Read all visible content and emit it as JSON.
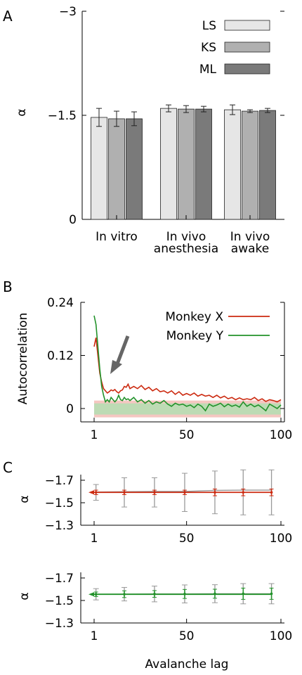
{
  "panels": {
    "A": {
      "letter": "A",
      "ylabel": "α",
      "yticks": [
        {
          "value": 0,
          "label": "0"
        },
        {
          "value": -1.5,
          "label": "−1.5"
        },
        {
          "value": -3,
          "label": "−3"
        }
      ],
      "legend": [
        {
          "name": "LS",
          "color": "#e6e6e6"
        },
        {
          "name": "KS",
          "color": "#b0b0b0"
        },
        {
          "name": "ML",
          "color": "#7a7a7a"
        }
      ],
      "groups": [
        {
          "lines": [
            "In vitro"
          ]
        },
        {
          "lines": [
            "In vivo",
            "anesthesia"
          ]
        },
        {
          "lines": [
            "In vivo",
            "awake"
          ]
        }
      ]
    },
    "B": {
      "letter": "B",
      "ylabel": "Autocorrelation",
      "yticks": [
        {
          "value": 0,
          "label": "0"
        },
        {
          "value": 0.12,
          "label": "0.12"
        },
        {
          "value": 0.24,
          "label": "0.24"
        }
      ],
      "xticks": [
        {
          "value": 1,
          "label": "1"
        },
        {
          "value": 50,
          "label": "50"
        },
        {
          "value": 100,
          "label": "100"
        }
      ],
      "legend": [
        {
          "name": "Monkey X",
          "color": "#cc2a10"
        },
        {
          "name": "Monkey Y",
          "color": "#22922a"
        }
      ]
    },
    "C": {
      "letter": "C",
      "ylabel": "α",
      "xlabel": "Avalanche lag",
      "yticks": [
        {
          "value": -1.7,
          "label": "−1.7"
        },
        {
          "value": -1.5,
          "label": "−1.5"
        },
        {
          "value": -1.3,
          "label": "−1.3"
        }
      ],
      "xticks": [
        {
          "value": 1,
          "label": "1"
        },
        {
          "value": 50,
          "label": "50"
        },
        {
          "value": 100,
          "label": "100"
        }
      ]
    }
  },
  "chart_data": [
    {
      "type": "bar",
      "panel": "A",
      "categories": [
        "In vitro",
        "In vivo anesthesia",
        "In vivo awake"
      ],
      "ylim": [
        0,
        -3
      ],
      "series": [
        {
          "name": "LS",
          "values": [
            -1.47,
            -1.6,
            -1.58
          ],
          "errors": [
            0.13,
            0.05,
            0.07
          ]
        },
        {
          "name": "KS",
          "values": [
            -1.45,
            -1.59,
            -1.56
          ],
          "errors": [
            0.11,
            0.05,
            0.02
          ]
        },
        {
          "name": "ML",
          "values": [
            -1.45,
            -1.59,
            -1.57
          ],
          "errors": [
            0.1,
            0.04,
            0.03
          ]
        }
      ]
    },
    {
      "type": "line",
      "panel": "B",
      "xlim": [
        1,
        100
      ],
      "ylim": [
        -0.03,
        0.24
      ],
      "series": [
        {
          "name": "Monkey X",
          "x": [
            1,
            2,
            3,
            4,
            5,
            6,
            7,
            8,
            9,
            10,
            11,
            12,
            13,
            14,
            15,
            16,
            17,
            18,
            19,
            20,
            22,
            24,
            26,
            28,
            30,
            32,
            34,
            36,
            38,
            40,
            42,
            44,
            46,
            48,
            50,
            52,
            54,
            56,
            58,
            60,
            62,
            64,
            66,
            68,
            70,
            72,
            74,
            76,
            78,
            80,
            82,
            84,
            86,
            88,
            90,
            92,
            94,
            96,
            98,
            100
          ],
          "y": [
            0.14,
            0.16,
            0.12,
            0.08,
            0.06,
            0.045,
            0.04,
            0.035,
            0.038,
            0.042,
            0.04,
            0.043,
            0.038,
            0.035,
            0.04,
            0.042,
            0.05,
            0.048,
            0.055,
            0.045,
            0.05,
            0.045,
            0.052,
            0.043,
            0.048,
            0.04,
            0.045,
            0.038,
            0.04,
            0.035,
            0.04,
            0.032,
            0.038,
            0.03,
            0.034,
            0.03,
            0.035,
            0.028,
            0.032,
            0.028,
            0.03,
            0.025,
            0.03,
            0.024,
            0.028,
            0.022,
            0.025,
            0.02,
            0.024,
            0.02,
            0.022,
            0.02,
            0.025,
            0.018,
            0.022,
            0.016,
            0.02,
            0.018,
            0.015,
            0.02
          ]
        },
        {
          "name": "Monkey Y",
          "x": [
            1,
            2,
            3,
            4,
            5,
            6,
            7,
            8,
            9,
            10,
            11,
            12,
            13,
            14,
            15,
            16,
            17,
            18,
            19,
            20,
            22,
            24,
            26,
            28,
            30,
            32,
            34,
            36,
            38,
            40,
            42,
            44,
            46,
            48,
            50,
            52,
            54,
            56,
            58,
            60,
            62,
            64,
            66,
            68,
            70,
            72,
            74,
            76,
            78,
            80,
            82,
            84,
            86,
            88,
            90,
            92,
            94,
            96,
            98,
            100
          ],
          "y": [
            0.21,
            0.19,
            0.14,
            0.09,
            0.05,
            0.03,
            0.015,
            0.02,
            0.015,
            0.025,
            0.02,
            0.015,
            0.02,
            0.03,
            0.02,
            0.018,
            0.025,
            0.02,
            0.022,
            0.018,
            0.025,
            0.015,
            0.02,
            0.012,
            0.018,
            0.01,
            0.015,
            0.012,
            0.018,
            0.01,
            0.005,
            0.012,
            0.008,
            0.01,
            0.005,
            0.008,
            0.002,
            0.01,
            0.005,
            -0.005,
            0.01,
            0.005,
            0.008,
            0.012,
            0.004,
            0.01,
            0.005,
            0.008,
            0.003,
            0.015,
            0.005,
            0.01,
            0.004,
            0.008,
            0.002,
            -0.005,
            0.01,
            0.005,
            0.0,
            0.008
          ]
        },
        {
          "name": "",
          "band": [
            -0.02,
            0.018
          ]
        }
      ]
    },
    {
      "type": "line",
      "panel": "C-top",
      "xlim": [
        1,
        100
      ],
      "ylim": [
        -1.3,
        -1.7
      ],
      "series": [
        {
          "name": "",
          "x": [
            1,
            2,
            3,
            4,
            5,
            6,
            7,
            8,
            9,
            10,
            11,
            12,
            13,
            14,
            15,
            16,
            17,
            18,
            19,
            20,
            21,
            22,
            23,
            24,
            25,
            26,
            27,
            28,
            29,
            30,
            31,
            32,
            33,
            34,
            35,
            36,
            37,
            38,
            39,
            40,
            41,
            42,
            43,
            44,
            45,
            46,
            47,
            48,
            49,
            50,
            51,
            52,
            53,
            54,
            55,
            56,
            57,
            58,
            59,
            60,
            61,
            62,
            63,
            64,
            65,
            66,
            67,
            68,
            69,
            70,
            71,
            72,
            73,
            74,
            75,
            76,
            77,
            78,
            79,
            80,
            81,
            82,
            83,
            84,
            85,
            86,
            87,
            88,
            89,
            90,
            91,
            92,
            93,
            94,
            95
          ],
          "y": [
            -1.592,
            -1.592,
            -1.592,
            -1.592,
            -1.592,
            -1.592,
            -1.592,
            -1.592,
            -1.592,
            -1.592,
            -1.592,
            -1.592,
            -1.592,
            -1.592,
            -1.592,
            -1.592,
            -1.592,
            -1.592,
            -1.592,
            -1.592,
            -1.592,
            -1.592,
            -1.592,
            -1.592,
            -1.592,
            -1.592,
            -1.592,
            -1.592,
            -1.592,
            -1.592,
            -1.592,
            -1.592,
            -1.592,
            -1.592,
            -1.592,
            -1.592,
            -1.592,
            -1.592,
            -1.592,
            -1.592,
            -1.592,
            -1.592,
            -1.592,
            -1.592,
            -1.592,
            -1.592,
            -1.592,
            -1.592,
            -1.592,
            -1.592,
            -1.592,
            -1.592,
            -1.592,
            -1.592,
            -1.592,
            -1.592,
            -1.592,
            -1.592,
            -1.592,
            -1.592,
            -1.592,
            -1.592,
            -1.592,
            -1.592,
            -1.592,
            -1.592,
            -1.592,
            -1.592,
            -1.592,
            -1.592,
            -1.592,
            -1.592,
            -1.592,
            -1.592,
            -1.592,
            -1.592,
            -1.592,
            -1.592,
            -1.592,
            -1.592,
            -1.592,
            -1.592,
            -1.592,
            -1.592,
            -1.592,
            -1.592,
            -1.592,
            -1.592,
            -1.592,
            -1.592,
            -1.592,
            -1.592,
            -1.592,
            -1.592,
            -1.592
          ]
        },
        {
          "name": "",
          "x": [
            2,
            17,
            33,
            49,
            65,
            80,
            95
          ],
          "y": [
            -1.595,
            -1.598,
            -1.6,
            -1.6,
            -1.61,
            -1.612,
            -1.612
          ]
        },
        {
          "name": "",
          "x": [
            2,
            17,
            33,
            49,
            65,
            80,
            95
          ],
          "y": [
            -1.592,
            -1.592,
            -1.592,
            -1.592,
            -1.592,
            -1.592,
            -1.592
          ],
          "errors_gray": [
            0.07,
            0.13,
            0.13,
            0.17,
            0.19,
            0.2,
            0.2
          ],
          "errors_color": [
            0.02,
            0.02,
            0.02,
            0.02,
            0.03,
            0.03,
            0.03
          ]
        }
      ]
    },
    {
      "type": "line",
      "panel": "C-bottom",
      "xlim": [
        1,
        100
      ],
      "ylim": [
        -1.3,
        -1.7
      ],
      "series": [
        {
          "name": "",
          "x": [
            1,
            2,
            3,
            4,
            5,
            6,
            7,
            8,
            9,
            10,
            11,
            12,
            13,
            14,
            15,
            16,
            17,
            18,
            19,
            20,
            21,
            22,
            23,
            24,
            25,
            26,
            27,
            28,
            29,
            30,
            31,
            32,
            33,
            34,
            35,
            36,
            37,
            38,
            39,
            40,
            41,
            42,
            43,
            44,
            45,
            46,
            47,
            48,
            49,
            50,
            51,
            52,
            53,
            54,
            55,
            56,
            57,
            58,
            59,
            60,
            61,
            62,
            63,
            64,
            65,
            66,
            67,
            68,
            69,
            70,
            71,
            72,
            73,
            74,
            75,
            76,
            77,
            78,
            79,
            80,
            81,
            82,
            83,
            84,
            85,
            86,
            87,
            88,
            89,
            90,
            91,
            92,
            93,
            94,
            95
          ],
          "y": [
            -1.555,
            -1.555,
            -1.555,
            -1.555,
            -1.555,
            -1.555,
            -1.555,
            -1.555,
            -1.555,
            -1.555,
            -1.555,
            -1.555,
            -1.555,
            -1.555,
            -1.555,
            -1.555,
            -1.555,
            -1.555,
            -1.555,
            -1.555,
            -1.555,
            -1.555,
            -1.555,
            -1.555,
            -1.555,
            -1.555,
            -1.555,
            -1.555,
            -1.555,
            -1.555,
            -1.555,
            -1.555,
            -1.555,
            -1.555,
            -1.555,
            -1.555,
            -1.555,
            -1.555,
            -1.555,
            -1.555,
            -1.555,
            -1.555,
            -1.555,
            -1.555,
            -1.555,
            -1.555,
            -1.555,
            -1.555,
            -1.555,
            -1.555,
            -1.555,
            -1.555,
            -1.555,
            -1.555,
            -1.555,
            -1.555,
            -1.555,
            -1.555,
            -1.555,
            -1.555,
            -1.555,
            -1.555,
            -1.555,
            -1.555,
            -1.555,
            -1.555,
            -1.555,
            -1.555,
            -1.555,
            -1.555,
            -1.555,
            -1.555,
            -1.555,
            -1.555,
            -1.555,
            -1.555,
            -1.555,
            -1.555,
            -1.555,
            -1.555,
            -1.555,
            -1.555,
            -1.555,
            -1.555,
            -1.555,
            -1.555,
            -1.555,
            -1.555,
            -1.555,
            -1.555,
            -1.555,
            -1.555,
            -1.555,
            -1.555,
            -1.555
          ]
        },
        {
          "name": "",
          "x": [
            2,
            17,
            33,
            49,
            65,
            80,
            95
          ],
          "y": [
            -1.555,
            -1.556,
            -1.558,
            -1.558,
            -1.56,
            -1.56,
            -1.56
          ]
        },
        {
          "name": "",
          "x": [
            2,
            17,
            33,
            49,
            65,
            80,
            95
          ],
          "y": [
            -1.555,
            -1.556,
            -1.558,
            -1.558,
            -1.56,
            -1.56,
            -1.56
          ],
          "errors_gray": [
            0.05,
            0.06,
            0.07,
            0.08,
            0.08,
            0.09,
            0.09
          ],
          "errors_color": [
            0.02,
            0.03,
            0.03,
            0.04,
            0.04,
            0.05,
            0.05
          ]
        }
      ]
    }
  ]
}
